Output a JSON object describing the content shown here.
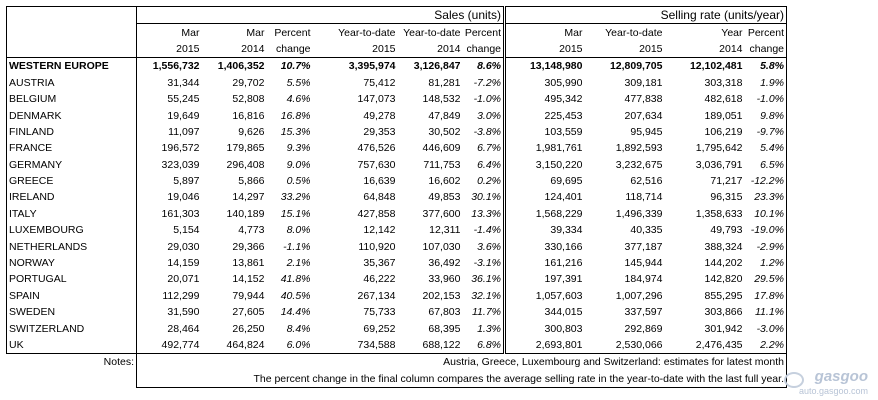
{
  "headers": {
    "group_sales": "Sales (units)",
    "group_rate": "Selling rate (units/year)",
    "row1": [
      "Mar",
      "Mar",
      "Percent",
      "Year-to-date",
      "Year-to-date",
      "Percent",
      "Mar",
      "Year-to-date",
      "Year",
      "Percent"
    ],
    "row2": [
      "2015",
      "2014",
      "change",
      "2015",
      "2014",
      "change",
      "2015",
      "2015",
      "2014",
      "change"
    ]
  },
  "rows": [
    {
      "name": "WESTERN EUROPE",
      "v": [
        "1,556,732",
        "1,406,352",
        "10.7%",
        "3,395,974",
        "3,126,847",
        "8.6%",
        "13,148,980",
        "12,809,705",
        "12,102,481",
        "5.8%"
      ]
    },
    {
      "name": "AUSTRIA",
      "v": [
        "31,344",
        "29,702",
        "5.5%",
        "75,412",
        "81,281",
        "-7.2%",
        "305,990",
        "309,181",
        "303,318",
        "1.9%"
      ]
    },
    {
      "name": "BELGIUM",
      "v": [
        "55,245",
        "52,808",
        "4.6%",
        "147,073",
        "148,532",
        "-1.0%",
        "495,342",
        "477,838",
        "482,618",
        "-1.0%"
      ]
    },
    {
      "name": "DENMARK",
      "v": [
        "19,649",
        "16,816",
        "16.8%",
        "49,278",
        "47,849",
        "3.0%",
        "225,453",
        "207,634",
        "189,051",
        "9.8%"
      ]
    },
    {
      "name": "FINLAND",
      "v": [
        "11,097",
        "9,626",
        "15.3%",
        "29,353",
        "30,502",
        "-3.8%",
        "103,559",
        "95,945",
        "106,219",
        "-9.7%"
      ]
    },
    {
      "name": "FRANCE",
      "v": [
        "196,572",
        "179,865",
        "9.3%",
        "476,526",
        "446,609",
        "6.7%",
        "1,981,761",
        "1,892,593",
        "1,795,642",
        "5.4%"
      ]
    },
    {
      "name": "GERMANY",
      "v": [
        "323,039",
        "296,408",
        "9.0%",
        "757,630",
        "711,753",
        "6.4%",
        "3,150,220",
        "3,232,675",
        "3,036,791",
        "6.5%"
      ]
    },
    {
      "name": "GREECE",
      "v": [
        "5,897",
        "5,866",
        "0.5%",
        "16,639",
        "16,602",
        "0.2%",
        "69,695",
        "62,516",
        "71,217",
        "-12.2%"
      ]
    },
    {
      "name": "IRELAND",
      "v": [
        "19,046",
        "14,297",
        "33.2%",
        "64,848",
        "49,853",
        "30.1%",
        "124,401",
        "118,714",
        "96,315",
        "23.3%"
      ]
    },
    {
      "name": "ITALY",
      "v": [
        "161,303",
        "140,189",
        "15.1%",
        "427,858",
        "377,600",
        "13.3%",
        "1,568,229",
        "1,496,339",
        "1,358,633",
        "10.1%"
      ]
    },
    {
      "name": "LUXEMBOURG",
      "v": [
        "5,154",
        "4,773",
        "8.0%",
        "12,142",
        "12,311",
        "-1.4%",
        "39,334",
        "40,335",
        "49,793",
        "-19.0%"
      ]
    },
    {
      "name": "NETHERLANDS",
      "v": [
        "29,030",
        "29,366",
        "-1.1%",
        "110,920",
        "107,030",
        "3.6%",
        "330,166",
        "377,187",
        "388,324",
        "-2.9%"
      ]
    },
    {
      "name": "NORWAY",
      "v": [
        "14,159",
        "13,861",
        "2.1%",
        "35,367",
        "36,492",
        "-3.1%",
        "161,216",
        "145,944",
        "144,202",
        "1.2%"
      ]
    },
    {
      "name": "PORTUGAL",
      "v": [
        "20,071",
        "14,152",
        "41.8%",
        "46,222",
        "33,960",
        "36.1%",
        "197,391",
        "184,974",
        "142,820",
        "29.5%"
      ]
    },
    {
      "name": "SPAIN",
      "v": [
        "112,299",
        "79,944",
        "40.5%",
        "267,134",
        "202,153",
        "32.1%",
        "1,057,603",
        "1,007,296",
        "855,295",
        "17.8%"
      ]
    },
    {
      "name": "SWEDEN",
      "v": [
        "31,590",
        "27,605",
        "14.4%",
        "75,733",
        "67,803",
        "11.7%",
        "344,015",
        "337,597",
        "303,866",
        "11.1%"
      ]
    },
    {
      "name": "SWITZERLAND",
      "v": [
        "28,464",
        "26,250",
        "8.4%",
        "69,252",
        "68,395",
        "1.3%",
        "300,803",
        "292,869",
        "301,942",
        "-3.0%"
      ]
    },
    {
      "name": "UK",
      "v": [
        "492,774",
        "464,824",
        "6.0%",
        "734,588",
        "688,122",
        "6.8%",
        "2,693,801",
        "2,530,066",
        "2,476,435",
        "2.2%"
      ]
    }
  ],
  "notes": {
    "label": "Notes:",
    "line1": "Austria, Greece, Luxembourg and Switzerland: estimates for latest month",
    "line2": "The percent change in the final column compares the average selling rate in the year-to-date with the last full year."
  },
  "watermark": {
    "brand": "gasgoo",
    "url": "auto.gasgoo.com",
    "logo_icon": "gasgoo-logo-icon"
  }
}
